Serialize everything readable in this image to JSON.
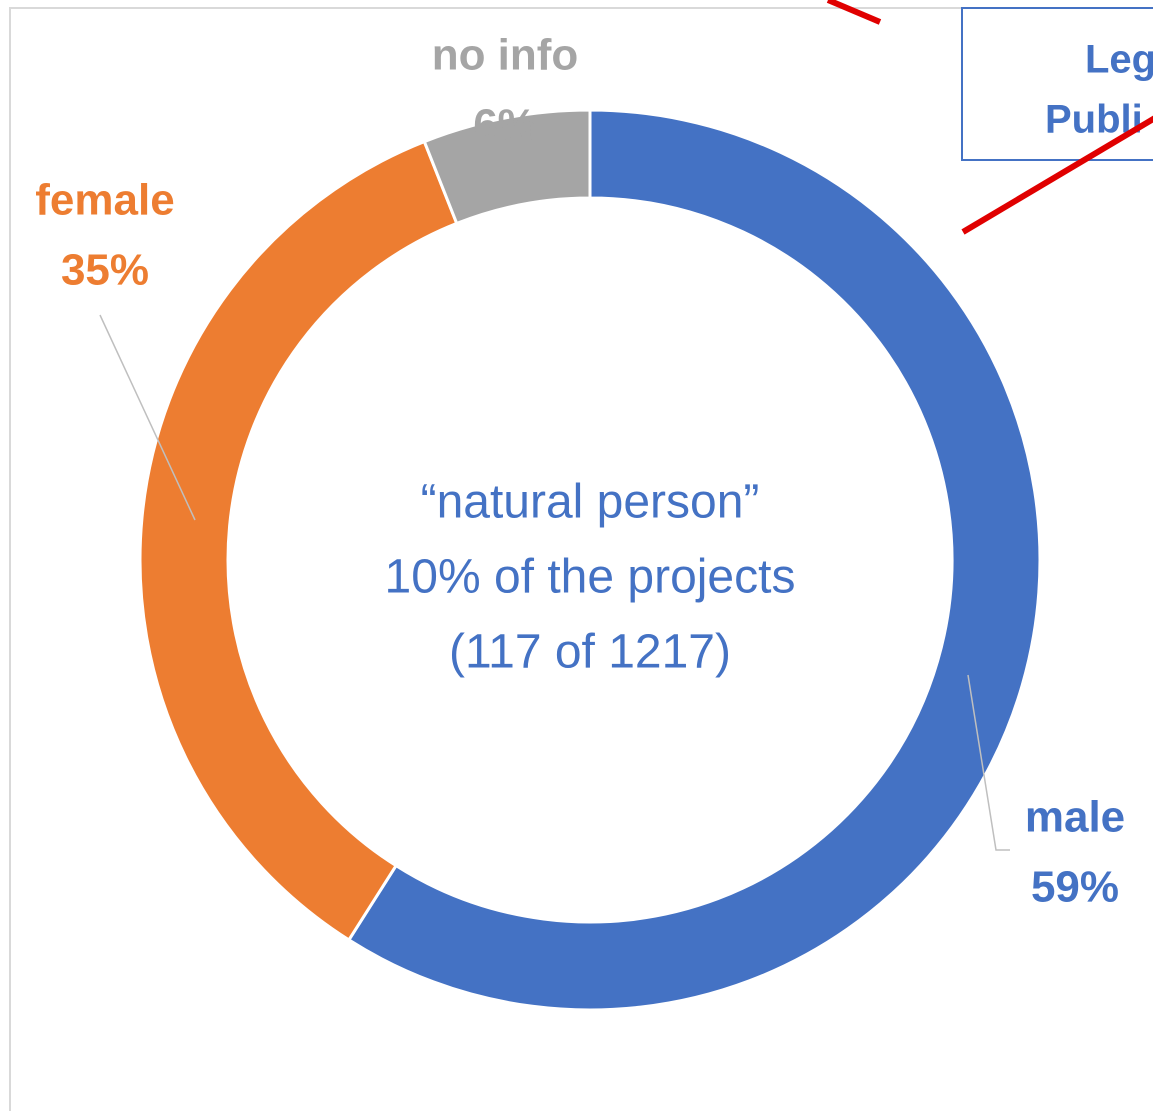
{
  "chart_data": {
    "type": "donut",
    "categories": [
      "male",
      "female",
      "no info"
    ],
    "values": [
      59,
      35,
      6
    ],
    "value_labels": [
      "59%",
      "35%",
      "6%"
    ],
    "colors": [
      "#4472c4",
      "#ed7d31",
      "#a5a5a5"
    ],
    "center_text": [
      "“natural person”",
      "10% of the projects",
      "(117 of 1217)"
    ],
    "box_text": [
      "Leg",
      "Publi"
    ]
  }
}
